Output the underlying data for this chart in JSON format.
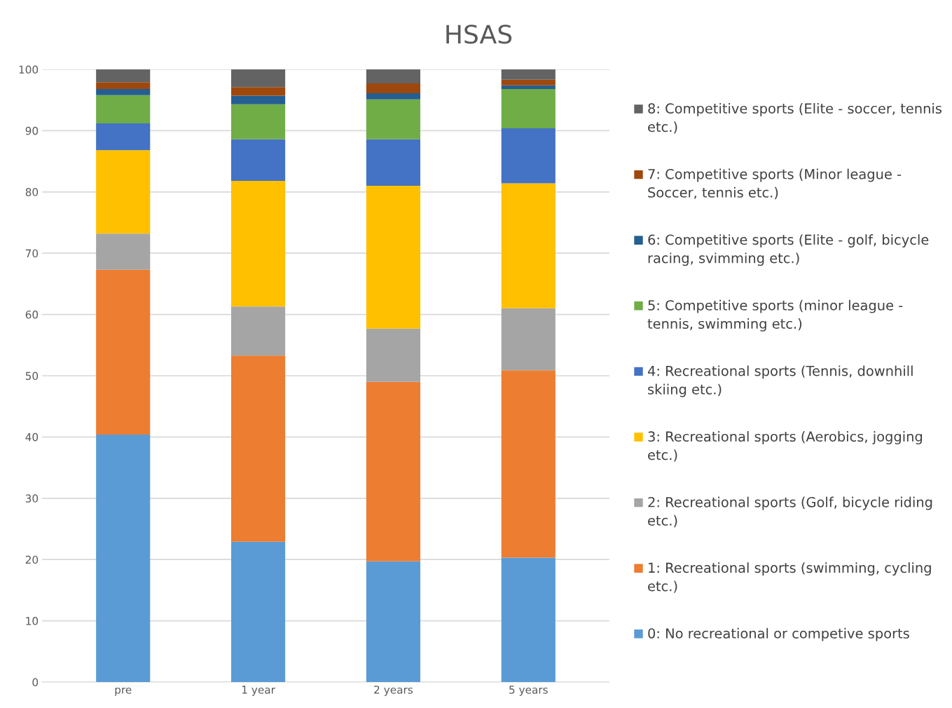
{
  "chart_data": {
    "type": "bar",
    "title": "HSAS",
    "stacked": true,
    "categories": [
      "pre",
      "1 year",
      "2 years",
      "5 years"
    ],
    "series": [
      {
        "name": "0: No recreational or competive sports",
        "color": "#5b9bd5",
        "values": [
          40.4,
          22.9,
          19.7,
          20.3
        ]
      },
      {
        "name": "1: Recreational sports (swimming, cycling etc.)",
        "color": "#ed7d31",
        "values": [
          26.9,
          30.4,
          29.3,
          30.6
        ]
      },
      {
        "name": "2: Recreational sports (Golf, bicycle riding etc.)",
        "color": "#a5a5a5",
        "values": [
          5.9,
          8.0,
          8.7,
          10.1
        ]
      },
      {
        "name": "3: Recreational sports (Aerobics, jogging etc.)",
        "color": "#ffc000",
        "values": [
          13.6,
          20.5,
          23.3,
          20.4
        ]
      },
      {
        "name": "4: Recreational sports (Tennis, downhill skiing etc.)",
        "color": "#4472c4",
        "values": [
          4.4,
          6.8,
          7.6,
          9.0
        ]
      },
      {
        "name": "5: Competitive sports (minor league - tennis, swimming etc.)",
        "color": "#70ad47",
        "values": [
          4.6,
          5.7,
          6.5,
          6.4
        ]
      },
      {
        "name": "6: Competitive sports (Elite - golf, bicycle racing, svimming etc.)",
        "color": "#255e91",
        "values": [
          1.0,
          1.4,
          1.0,
          0.6
        ]
      },
      {
        "name": "7: Competitive sports (Minor league - Soccer, tennis etc.)",
        "color": "#9e480e",
        "values": [
          1.1,
          1.4,
          1.6,
          0.9
        ]
      },
      {
        "name": "8: Competitive sports (Elite - soccer, tennis etc.)",
        "color": "#636363",
        "values": [
          2.1,
          2.9,
          2.3,
          1.7
        ]
      }
    ],
    "ylim": [
      0,
      100
    ],
    "yticks": [
      0,
      10,
      20,
      30,
      40,
      50,
      60,
      70,
      80,
      90,
      100
    ],
    "grid": "y",
    "legend": "right"
  }
}
